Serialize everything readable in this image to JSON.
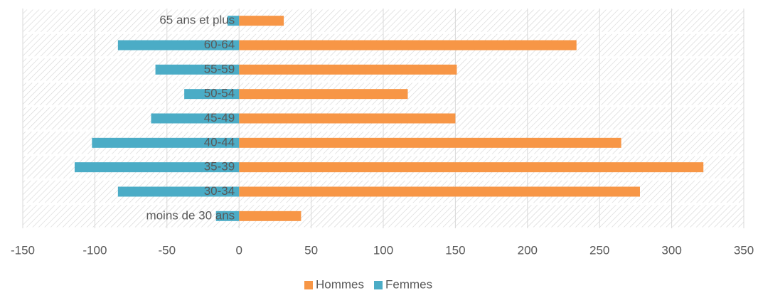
{
  "chart_data": {
    "type": "bar",
    "orientation": "horizontal",
    "categories": [
      "65 ans et plus",
      "60-64",
      "55-59",
      "50-54",
      "45-49",
      "40-44",
      "35-39",
      "30-34",
      "moins de 30 ans"
    ],
    "series": [
      {
        "name": "Hommes",
        "color": "#f79646",
        "values": [
          31,
          234,
          151,
          117,
          150,
          265,
          322,
          278,
          43
        ]
      },
      {
        "name": "Femmes",
        "color": "#4bacc6",
        "values": [
          -8,
          -84,
          -58,
          -38,
          -61,
          -102,
          -114,
          -84,
          -16
        ]
      }
    ],
    "xlim": [
      -150,
      350
    ],
    "xticks": [
      -150,
      -100,
      -50,
      0,
      50,
      100,
      150,
      200,
      250,
      300,
      350
    ],
    "grid": true,
    "legend": "bottom"
  }
}
